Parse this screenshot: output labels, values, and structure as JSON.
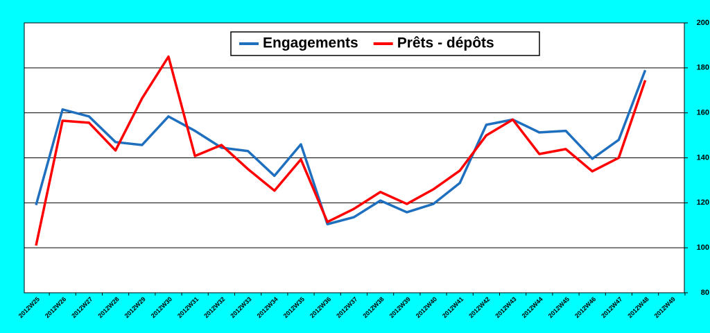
{
  "chart_data": {
    "type": "line",
    "categories": [
      "2012W25",
      "2012W26",
      "2012W27",
      "2012W28",
      "2012W29",
      "2012W30",
      "2012W31",
      "2012W32",
      "2012W33",
      "2012W34",
      "2012W35",
      "2012W36",
      "2012W37",
      "2012W38",
      "2012W39",
      "2012W40",
      "2012W41",
      "2012W42",
      "2012W43",
      "2012W44",
      "2012W45",
      "2012W46",
      "2012W47",
      "2012W48",
      "2012W49"
    ],
    "series": [
      {
        "name": "Engagements",
        "color": "#1f6fbf",
        "values": [
          119,
          161.5,
          158.4,
          147,
          145.7,
          158.4,
          152,
          144.5,
          143,
          132,
          146,
          110.5,
          113.6,
          121,
          115.8,
          119.5,
          128.8,
          154.7,
          157,
          151.3,
          152,
          139.6,
          148,
          179,
          null
        ]
      },
      {
        "name": "Prêts - dépôts",
        "color": "#ff0000",
        "values": [
          101,
          156.5,
          155.6,
          143.3,
          166.4,
          185,
          140.8,
          145.7,
          135,
          125.4,
          139.3,
          111.5,
          117.3,
          124.8,
          119.5,
          126,
          134.3,
          150,
          157,
          141.7,
          143.9,
          134,
          140,
          174.5,
          null
        ]
      }
    ],
    "ylim": [
      80,
      200
    ],
    "yticks": [
      80,
      100,
      120,
      140,
      160,
      180,
      200
    ],
    "grid": true,
    "legend": "top"
  }
}
